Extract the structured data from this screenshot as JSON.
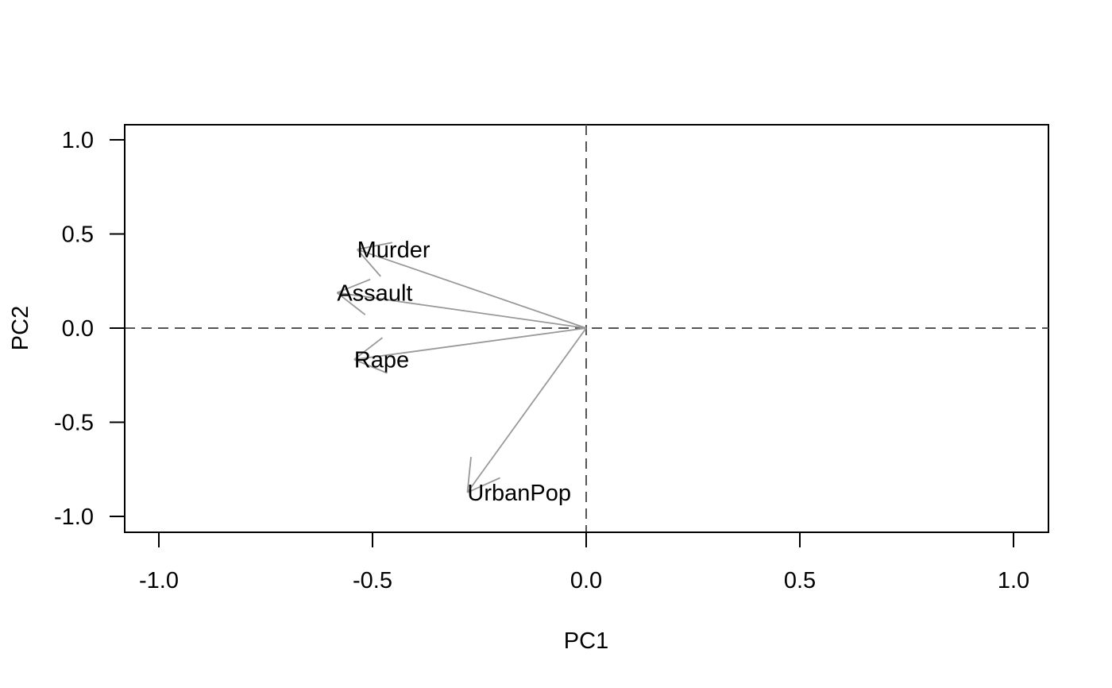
{
  "chart_data": {
    "type": "scatter",
    "xlabel": "PC1",
    "ylabel": "PC2",
    "xlim": [
      -1.08,
      1.08
    ],
    "ylim": [
      -1.08,
      1.08
    ],
    "x_ticks": [
      {
        "value": -1.0,
        "label": "-1.0"
      },
      {
        "value": -0.5,
        "label": "-0.5"
      },
      {
        "value": 0.0,
        "label": "0.0"
      },
      {
        "value": 0.5,
        "label": "0.5"
      },
      {
        "value": 1.0,
        "label": "1.0"
      }
    ],
    "y_ticks": [
      {
        "value": -1.0,
        "label": "-1.0"
      },
      {
        "value": -0.5,
        "label": "-0.5"
      },
      {
        "value": 0.0,
        "label": "0.0"
      },
      {
        "value": 0.5,
        "label": "0.5"
      },
      {
        "value": 1.0,
        "label": "1.0"
      }
    ],
    "reference_lines": {
      "x": 0,
      "y": 0,
      "style": "dashed"
    },
    "grid": false,
    "legend": false,
    "arrow_color": "#999999",
    "vectors": [
      {
        "name": "Murder",
        "x": -0.536,
        "y": 0.418
      },
      {
        "name": "Assault",
        "x": -0.583,
        "y": 0.188
      },
      {
        "name": "Rape",
        "x": -0.543,
        "y": -0.167
      },
      {
        "name": "UrbanPop",
        "x": -0.278,
        "y": -0.873
      }
    ]
  }
}
